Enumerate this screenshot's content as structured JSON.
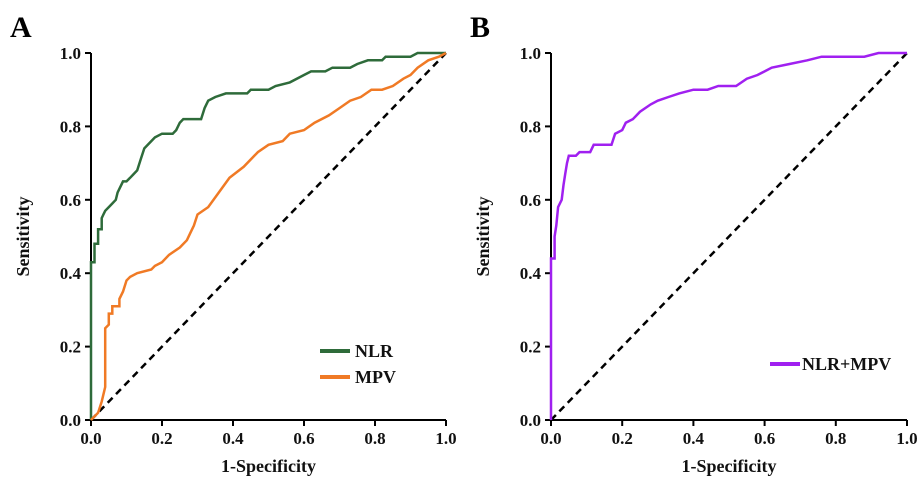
{
  "chart_data": [
    {
      "type": "line",
      "panel_label": "A",
      "xlabel": "1-Specificity",
      "ylabel": "Sensitivity",
      "xlim": [
        0,
        1
      ],
      "ylim": [
        0,
        1
      ],
      "x_ticks": [
        "0.0",
        "0.2",
        "0.4",
        "0.6",
        "0.8",
        "1.0"
      ],
      "y_ticks": [
        "0.0",
        "0.2",
        "0.4",
        "0.6",
        "0.8",
        "1.0"
      ],
      "grid": false,
      "legend_position": "bottom-right",
      "reference_line": {
        "style": "dashed",
        "color": "#000000",
        "points": [
          [
            0,
            0
          ],
          [
            1,
            1
          ]
        ]
      },
      "series": [
        {
          "name": "NLR",
          "color": "#2e6b3a",
          "points": [
            [
              0,
              0
            ],
            [
              0,
              0.43
            ],
            [
              0.01,
              0.43
            ],
            [
              0.01,
              0.48
            ],
            [
              0.02,
              0.48
            ],
            [
              0.02,
              0.52
            ],
            [
              0.03,
              0.52
            ],
            [
              0.03,
              0.55
            ],
            [
              0.035,
              0.56
            ],
            [
              0.04,
              0.57
            ],
            [
              0.05,
              0.58
            ],
            [
              0.06,
              0.59
            ],
            [
              0.07,
              0.6
            ],
            [
              0.075,
              0.62
            ],
            [
              0.08,
              0.63
            ],
            [
              0.09,
              0.65
            ],
            [
              0.1,
              0.65
            ],
            [
              0.11,
              0.66
            ],
            [
              0.12,
              0.67
            ],
            [
              0.13,
              0.68
            ],
            [
              0.14,
              0.71
            ],
            [
              0.15,
              0.74
            ],
            [
              0.16,
              0.75
            ],
            [
              0.17,
              0.76
            ],
            [
              0.18,
              0.77
            ],
            [
              0.2,
              0.78
            ],
            [
              0.23,
              0.78
            ],
            [
              0.24,
              0.79
            ],
            [
              0.25,
              0.81
            ],
            [
              0.26,
              0.82
            ],
            [
              0.31,
              0.82
            ],
            [
              0.32,
              0.85
            ],
            [
              0.33,
              0.87
            ],
            [
              0.35,
              0.88
            ],
            [
              0.38,
              0.89
            ],
            [
              0.44,
              0.89
            ],
            [
              0.45,
              0.9
            ],
            [
              0.5,
              0.9
            ],
            [
              0.52,
              0.91
            ],
            [
              0.56,
              0.92
            ],
            [
              0.6,
              0.94
            ],
            [
              0.62,
              0.95
            ],
            [
              0.66,
              0.95
            ],
            [
              0.68,
              0.96
            ],
            [
              0.73,
              0.96
            ],
            [
              0.75,
              0.97
            ],
            [
              0.78,
              0.98
            ],
            [
              0.82,
              0.98
            ],
            [
              0.83,
              0.99
            ],
            [
              0.9,
              0.99
            ],
            [
              0.92,
              1.0
            ],
            [
              1.0,
              1.0
            ]
          ]
        },
        {
          "name": "MPV",
          "color": "#f07a25",
          "points": [
            [
              0,
              0
            ],
            [
              0.02,
              0.02
            ],
            [
              0.03,
              0.05
            ],
            [
              0.04,
              0.09
            ],
            [
              0.04,
              0.25
            ],
            [
              0.05,
              0.26
            ],
            [
              0.05,
              0.29
            ],
            [
              0.06,
              0.29
            ],
            [
              0.06,
              0.31
            ],
            [
              0.08,
              0.31
            ],
            [
              0.08,
              0.33
            ],
            [
              0.09,
              0.35
            ],
            [
              0.1,
              0.38
            ],
            [
              0.11,
              0.39
            ],
            [
              0.13,
              0.4
            ],
            [
              0.17,
              0.41
            ],
            [
              0.18,
              0.42
            ],
            [
              0.2,
              0.43
            ],
            [
              0.22,
              0.45
            ],
            [
              0.25,
              0.47
            ],
            [
              0.27,
              0.49
            ],
            [
              0.28,
              0.51
            ],
            [
              0.29,
              0.53
            ],
            [
              0.3,
              0.56
            ],
            [
              0.33,
              0.58
            ],
            [
              0.36,
              0.62
            ],
            [
              0.39,
              0.66
            ],
            [
              0.43,
              0.69
            ],
            [
              0.47,
              0.73
            ],
            [
              0.5,
              0.75
            ],
            [
              0.54,
              0.76
            ],
            [
              0.56,
              0.78
            ],
            [
              0.6,
              0.79
            ],
            [
              0.63,
              0.81
            ],
            [
              0.67,
              0.83
            ],
            [
              0.7,
              0.85
            ],
            [
              0.73,
              0.87
            ],
            [
              0.76,
              0.88
            ],
            [
              0.79,
              0.9
            ],
            [
              0.82,
              0.9
            ],
            [
              0.85,
              0.91
            ],
            [
              0.88,
              0.93
            ],
            [
              0.9,
              0.94
            ],
            [
              0.92,
              0.96
            ],
            [
              0.95,
              0.98
            ],
            [
              0.98,
              0.99
            ],
            [
              1.0,
              1.0
            ]
          ]
        }
      ]
    },
    {
      "type": "line",
      "panel_label": "B",
      "xlabel": "1-Specificity",
      "ylabel": "Sensitivity",
      "xlim": [
        0,
        1
      ],
      "ylim": [
        0,
        1
      ],
      "x_ticks": [
        "0.0",
        "0.2",
        "0.4",
        "0.6",
        "0.8",
        "1.0"
      ],
      "y_ticks": [
        "0.0",
        "0.2",
        "0.4",
        "0.6",
        "0.8",
        "1.0"
      ],
      "grid": false,
      "legend_position": "bottom-right",
      "reference_line": {
        "style": "dashed",
        "color": "#000000",
        "points": [
          [
            0,
            0
          ],
          [
            1,
            1
          ]
        ]
      },
      "series": [
        {
          "name": "NLR+MPV",
          "color": "#a020f0",
          "points": [
            [
              0,
              0
            ],
            [
              0,
              0.44
            ],
            [
              0.01,
              0.44
            ],
            [
              0.01,
              0.5
            ],
            [
              0.015,
              0.53
            ],
            [
              0.02,
              0.58
            ],
            [
              0.03,
              0.6
            ],
            [
              0.035,
              0.64
            ],
            [
              0.04,
              0.67
            ],
            [
              0.045,
              0.7
            ],
            [
              0.05,
              0.72
            ],
            [
              0.07,
              0.72
            ],
            [
              0.08,
              0.73
            ],
            [
              0.11,
              0.73
            ],
            [
              0.12,
              0.75
            ],
            [
              0.17,
              0.75
            ],
            [
              0.18,
              0.78
            ],
            [
              0.2,
              0.79
            ],
            [
              0.21,
              0.81
            ],
            [
              0.23,
              0.82
            ],
            [
              0.25,
              0.84
            ],
            [
              0.28,
              0.86
            ],
            [
              0.3,
              0.87
            ],
            [
              0.33,
              0.88
            ],
            [
              0.36,
              0.89
            ],
            [
              0.4,
              0.9
            ],
            [
              0.44,
              0.9
            ],
            [
              0.47,
              0.91
            ],
            [
              0.52,
              0.91
            ],
            [
              0.55,
              0.93
            ],
            [
              0.58,
              0.94
            ],
            [
              0.6,
              0.95
            ],
            [
              0.62,
              0.96
            ],
            [
              0.67,
              0.97
            ],
            [
              0.72,
              0.98
            ],
            [
              0.76,
              0.99
            ],
            [
              0.88,
              0.99
            ],
            [
              0.92,
              1.0
            ],
            [
              1.0,
              1.0
            ]
          ]
        }
      ]
    }
  ]
}
